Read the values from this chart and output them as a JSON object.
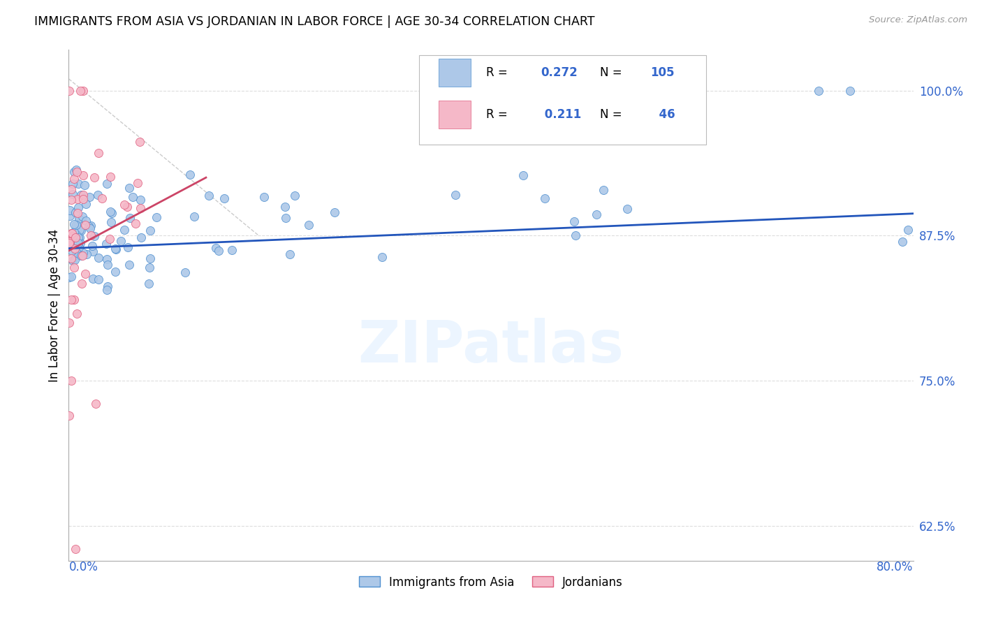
{
  "title": "IMMIGRANTS FROM ASIA VS JORDANIAN IN LABOR FORCE | AGE 30-34 CORRELATION CHART",
  "source": "Source: ZipAtlas.com",
  "ylabel": "In Labor Force | Age 30-34",
  "xlim": [
    0.0,
    0.8
  ],
  "ylim": [
    0.595,
    1.035
  ],
  "blue_R": 0.272,
  "blue_N": 105,
  "pink_R": 0.211,
  "pink_N": 46,
  "blue_fill_color": "#adc8e8",
  "blue_edge_color": "#5090d0",
  "pink_fill_color": "#f5b8c8",
  "pink_edge_color": "#e06080",
  "blue_line_color": "#2255bb",
  "pink_line_color": "#cc4466",
  "diag_line_color": "#cccccc",
  "grid_color": "#dddddd",
  "right_label_color": "#3366cc",
  "watermark_text": "ZIPatlas",
  "watermark_color": "#ddeeff",
  "legend_label_blue": "Immigrants from Asia",
  "legend_label_pink": "Jordanians",
  "ytick_vals": [
    0.625,
    0.75,
    0.875,
    1.0
  ],
  "ytick_labels": [
    "62.5%",
    "75.0%",
    "87.5%",
    "100.0%"
  ]
}
